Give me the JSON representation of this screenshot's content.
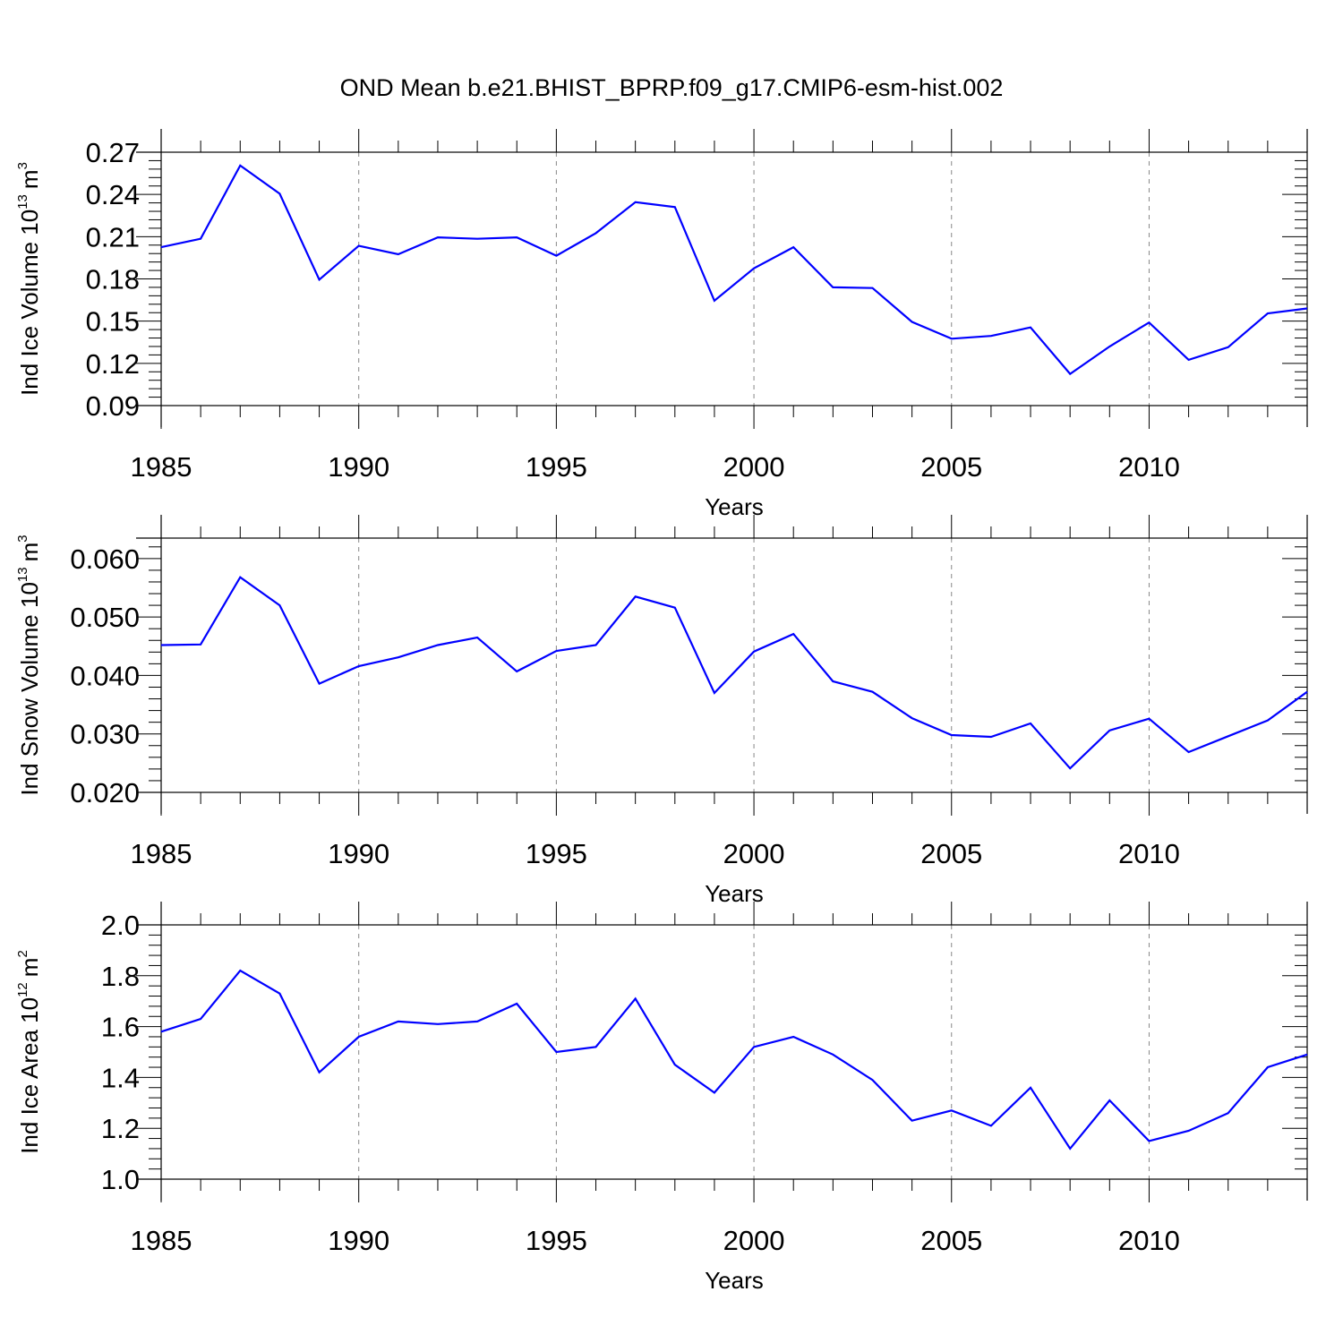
{
  "title": "OND Mean b.e21.BHIST_BPRP.f09_g17.CMIP6-esm-hist.002",
  "colors": {
    "line": "#0000ff",
    "axis": "#000000",
    "grid": "#888888"
  },
  "chart_data": [
    {
      "type": "line",
      "ylabel": "Ind Ice Volume 10",
      "ylabel_exp": "13",
      "ylabel_unit": "m",
      "ylabel_unit_exp": "3",
      "xlabel": "Years",
      "x_ticks": [
        "1985",
        "1990",
        "1995",
        "2000",
        "2005",
        "2010"
      ],
      "y_ticks": [
        "0.09",
        "0.12",
        "0.15",
        "0.18",
        "0.21",
        "0.24",
        "0.27"
      ],
      "xlim": [
        1985,
        2014
      ],
      "ylim": [
        0.09,
        0.27
      ],
      "grid": "vertical dashed at major x ticks",
      "x": [
        1985,
        1986,
        1987,
        1988,
        1989,
        1990,
        1991,
        1992,
        1993,
        1994,
        1995,
        1996,
        1997,
        1998,
        1999,
        2000,
        2001,
        2002,
        2003,
        2004,
        2005,
        2006,
        2007,
        2008,
        2009,
        2010,
        2011,
        2012,
        2013,
        2014
      ],
      "values": [
        0.2025,
        0.2085,
        0.2605,
        0.2405,
        0.1795,
        0.2035,
        0.1975,
        0.2095,
        0.2085,
        0.2095,
        0.1965,
        0.2125,
        0.2345,
        0.231,
        0.1645,
        0.1875,
        0.2025,
        0.174,
        0.1735,
        0.1495,
        0.1375,
        0.1395,
        0.1455,
        0.1125,
        0.132,
        0.149,
        0.1225,
        0.1315,
        0.1555,
        0.159
      ]
    },
    {
      "type": "line",
      "ylabel": "Ind Snow Volume 10",
      "ylabel_exp": "13",
      "ylabel_unit": "m",
      "ylabel_unit_exp": "3",
      "xlabel": "Years",
      "x_ticks": [
        "1985",
        "1990",
        "1995",
        "2000",
        "2005",
        "2010"
      ],
      "y_ticks": [
        "0.020",
        "0.030",
        "0.040",
        "0.050",
        "0.060"
      ],
      "xlim": [
        1985,
        2014
      ],
      "ylim": [
        0.02,
        0.0635
      ],
      "grid": "vertical dashed at major x ticks",
      "x": [
        1985,
        1986,
        1987,
        1988,
        1989,
        1990,
        1991,
        1992,
        1993,
        1994,
        1995,
        1996,
        1997,
        1998,
        1999,
        2000,
        2001,
        2002,
        2003,
        2004,
        2005,
        2006,
        2007,
        2008,
        2009,
        2010,
        2011,
        2012,
        2013,
        2014
      ],
      "values": [
        0.0452,
        0.0453,
        0.0568,
        0.052,
        0.0386,
        0.0416,
        0.0431,
        0.0452,
        0.0465,
        0.0407,
        0.0442,
        0.0452,
        0.0535,
        0.0516,
        0.037,
        0.0441,
        0.0471,
        0.039,
        0.0372,
        0.0327,
        0.0298,
        0.0295,
        0.0318,
        0.0241,
        0.0306,
        0.0326,
        0.0269,
        0.0296,
        0.0323,
        0.0372
      ]
    },
    {
      "type": "line",
      "ylabel": "Ind Ice Area 10",
      "ylabel_exp": "12",
      "ylabel_unit": "m",
      "ylabel_unit_exp": "2",
      "xlabel": "Years",
      "x_ticks": [
        "1985",
        "1990",
        "1995",
        "2000",
        "2005",
        "2010"
      ],
      "y_ticks": [
        "1.0",
        "1.2",
        "1.4",
        "1.6",
        "1.8",
        "2.0"
      ],
      "xlim": [
        1985,
        2014
      ],
      "ylim": [
        1.0,
        2.0
      ],
      "grid": "vertical dashed at major x ticks",
      "x": [
        1985,
        1986,
        1987,
        1988,
        1989,
        1990,
        1991,
        1992,
        1993,
        1994,
        1995,
        1996,
        1997,
        1998,
        1999,
        2000,
        2001,
        2002,
        2003,
        2004,
        2005,
        2006,
        2007,
        2008,
        2009,
        2010,
        2011,
        2012,
        2013,
        2014
      ],
      "values": [
        1.58,
        1.63,
        1.82,
        1.73,
        1.42,
        1.56,
        1.62,
        1.61,
        1.62,
        1.69,
        1.5,
        1.52,
        1.71,
        1.45,
        1.34,
        1.52,
        1.56,
        1.49,
        1.39,
        1.23,
        1.27,
        1.21,
        1.36,
        1.12,
        1.31,
        1.15,
        1.19,
        1.26,
        1.44,
        1.49
      ]
    }
  ]
}
